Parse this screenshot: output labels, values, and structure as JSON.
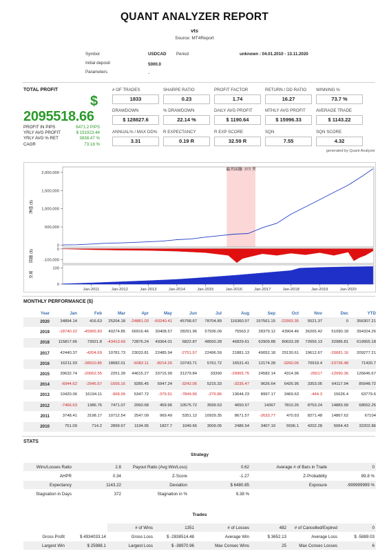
{
  "header": {
    "title": "QUANT ANALYZER REPORT",
    "strategy": "vts",
    "source": "Source: MT4Report"
  },
  "info": {
    "symbol_label": "Symbol",
    "symbol": "USDCAD",
    "period_label": "Period",
    "period": "unknown : 04.01.2010 - 13.11.2020",
    "deposit_label": "Initial deposit",
    "deposit": "5000.0",
    "params_label": "Parameters",
    "params": "-"
  },
  "total_profit": {
    "label": "TOTAL PROFIT",
    "currency": "$",
    "value": "2095518.66",
    "rows": [
      {
        "label": "PROFIT IN PIPS",
        "value": "6471.2 PIPS"
      },
      {
        "label": "YRLY AVG PROFIT",
        "value": "$ 191923.44"
      },
      {
        "label": "YRLY AVG % RET",
        "value": "3838.47 %"
      },
      {
        "label": "CAGR",
        "value": "73.18 %"
      }
    ]
  },
  "metrics": [
    [
      {
        "label": "# OF TRADES",
        "value": "1833"
      },
      {
        "label": "SHARPE RATIO",
        "value": "0.23"
      },
      {
        "label": "PROFIT FACTOR",
        "value": "1.74"
      },
      {
        "label": "RETURN / DD RATIO",
        "value": "16.27"
      },
      {
        "label": "WINNING %",
        "value": "73.7 %"
      }
    ],
    [
      {
        "label": "DRAWDOWN",
        "value": "$ 128827.6"
      },
      {
        "label": "% DRAWDOWN",
        "value": "22.14 %"
      },
      {
        "label": "DAILY AVG PROFIT",
        "value": "$ 1190.64"
      },
      {
        "label": "MTHLY AVG PROFIT",
        "value": "$ 15996.33"
      },
      {
        "label": "AVERAGE TRADE",
        "value": "$ 1143.22"
      }
    ],
    [
      {
        "label": "ANNUAL% / MAX DD%",
        "value": "3.31"
      },
      {
        "label": "R EXPECTANCY",
        "value": "0.19 R"
      },
      {
        "label": "R EXP SCORE",
        "value": "32.59 R"
      },
      {
        "label": "SQN",
        "value": "7.55"
      },
      {
        "label": "SQN SCORE",
        "value": "4.32"
      }
    ]
  ],
  "generated_by": "generated by Quant Analyzer",
  "chart_data": {
    "type": "line",
    "equity": {
      "ylabel": "净值 ($)",
      "yticks": [
        "2,000,000",
        "1,500,000",
        "1,000,000",
        "500,000",
        "0"
      ],
      "ytick_values": [
        2000000,
        1500000,
        1000000,
        500000,
        0
      ],
      "ylim": [
        -50000,
        2150000
      ],
      "highlight_label": "最大回撤: 372 天",
      "x": [
        2010.0,
        2010.5,
        2011.0,
        2011.5,
        2012.0,
        2012.5,
        2013.0,
        2013.5,
        2014.0,
        2014.5,
        2015.0,
        2015.5,
        2016.0,
        2016.5,
        2017.0,
        2017.5,
        2018.0,
        2018.5,
        2019.0,
        2019.5,
        2020.0,
        2020.5,
        2020.87
      ],
      "y": [
        5000,
        10000,
        30000,
        50000,
        60000,
        75000,
        90000,
        110000,
        150000,
        170000,
        220000,
        260000,
        300000,
        320000,
        480000,
        600000,
        850000,
        1050000,
        1250000,
        1450000,
        1650000,
        1900000,
        2100000
      ]
    },
    "drawdown": {
      "ylabel": "回撤 ($)",
      "yticks": [
        "0",
        "-100,000"
      ],
      "ytick_values": [
        0,
        -100000
      ],
      "ylim": [
        -135000,
        5000
      ],
      "x": [
        2010.0,
        2011.0,
        2012.0,
        2013.0,
        2014.0,
        2015.0,
        2015.8,
        2016.1,
        2016.3,
        2016.6,
        2017.0,
        2017.5,
        2018.0,
        2018.5,
        2019.0,
        2019.5,
        2020.0,
        2020.2,
        2020.4,
        2020.6,
        2020.87
      ],
      "y": [
        0,
        -8000,
        -12000,
        -15000,
        -22000,
        -35000,
        -60000,
        -128000,
        -90000,
        -70000,
        -45000,
        -60000,
        -40000,
        -55000,
        -35000,
        -60000,
        -30000,
        -110000,
        -80000,
        -60000,
        -20000
      ]
    },
    "trades": {
      "ylabel": "交易",
      "yticks": [
        "100",
        "0"
      ],
      "ytick_values": [
        100,
        0
      ],
      "ylim": [
        0,
        120
      ]
    },
    "xticks": [
      "Jan-2011",
      "Jan-2012",
      "Jan-2013",
      "Jan-2014",
      "Jan-2015",
      "Jan-2016",
      "Jan-2017",
      "Jan-2018",
      "Jan-2019",
      "Jan-2020"
    ],
    "xtick_values": [
      2011,
      2012,
      2013,
      2014,
      2015,
      2016,
      2017,
      2018,
      2019,
      2020
    ],
    "xlim": [
      2010.0,
      2020.9
    ],
    "highlight_range": [
      2015.75,
      2016.75
    ],
    "colors": {
      "equity": "#1f3ec7",
      "drawdown": "#e01010",
      "trades": "#1f30c8",
      "highlight": "#fbd7d7"
    }
  },
  "monthly": {
    "title": "MONTHLY PERFORMANCE ($)",
    "headers": [
      "Year",
      "Jan",
      "Feb",
      "Mar",
      "Apr",
      "May",
      "Jun",
      "Jul",
      "Aug",
      "Sep",
      "Oct",
      "Nov",
      "Dec",
      "YTD"
    ],
    "rows": [
      [
        "2020",
        "34894.14",
        "416.63",
        "25204.18",
        "-24881.03",
        "-60240.41",
        "45758.67",
        "78704.89",
        "116360.97",
        "157561.15",
        "-22993.35",
        "5521.37",
        "0",
        "356307.21"
      ],
      [
        "2019",
        "-18740.22",
        "-45965.83",
        "40274.85",
        "66916.46",
        "30408.57",
        "28291.96",
        "57936.09",
        "75563.2",
        "28379.12",
        "43904.46",
        "36265.42",
        "51090.18",
        "394324.26"
      ],
      [
        "2018",
        "115817.96",
        "73921.8",
        "-43413.69",
        "72876.24",
        "49364.01",
        "6822.87",
        "48550.28",
        "46829.61",
        "62909.88",
        "80633.28",
        "72656.13",
        "32986.81",
        "619955.18"
      ],
      [
        "2017",
        "42440.37",
        "-4204.69",
        "10781.73",
        "23033.81",
        "22485.94",
        "-2751.97",
        "22496.59",
        "21881.13",
        "49052.18",
        "25130.61",
        "19612.67",
        "-20681.16",
        "209277.21"
      ],
      [
        "2016",
        "16211.93",
        "-38310.85",
        "18682.01",
        "-6082.11",
        "-8214.26",
        "10743.71",
        "5761.72",
        "16531.41",
        "12174.28",
        "-3260.06",
        "70919.4",
        "-23736.48",
        "71420.7"
      ],
      [
        "2015",
        "39632.74",
        "-20062.55",
        "2251.39",
        "44615.27",
        "33715.99",
        "31279.84",
        "33390",
        "-29965.75",
        "24582.14",
        "4314.96",
        "-25017",
        "-12090.36",
        "126646.67"
      ],
      [
        "2014",
        "-6944.62",
        "-2945.57",
        "-1656.16",
        "9285.45",
        "5947.24",
        "-3242.06",
        "5215.33",
        "-3235.47",
        "9626.64",
        "6426.95",
        "3353.05",
        "64117.94",
        "85948.72"
      ],
      [
        "2013",
        "10420.06",
        "16194.11",
        "-968.99",
        "5347.72",
        "-379.61",
        "-7849.96",
        "-276.86",
        "13644.23",
        "8997.17",
        "3469.63",
        "-444.3",
        "15626.4",
        "63779.6"
      ],
      [
        "2012",
        "-7466.63",
        "1386.76",
        "7471.07",
        "2060.68",
        "459.96",
        "10575.72",
        "3599.63",
        "4650.57",
        "14367",
        "7810.26",
        "8753.24",
        "14883.99",
        "68552.25"
      ],
      [
        "2011",
        "3748.41",
        "3198.17",
        "10712.54",
        "2547.09",
        "969.49",
        "5351.12",
        "10929.35",
        "8671.57",
        "-2633.77",
        "470.93",
        "8271.48",
        "14867.62",
        "67104"
      ],
      [
        "2010",
        "751.09",
        "714.2",
        "2899.67",
        "1194.95",
        "1827.7",
        "1049.66",
        "3009.05",
        "2486.54",
        "3407.19",
        "5596.1",
        "4202.28",
        "5064.43",
        "32202.86"
      ]
    ]
  },
  "stats": {
    "title": "STATS",
    "strategy_title": "Strategy",
    "strategy_rows": [
      [
        "Wins/Losses Ratio",
        "2.8",
        "Payout Ratio (Avg Win/Loss)",
        "0.62",
        "Average # of Bars in Trade",
        "0"
      ],
      [
        "AHPR",
        "0.34",
        "Z-Score",
        "-1.27",
        "Z-Probability",
        "89.8 %"
      ],
      [
        "Expectancy",
        "1143.22",
        "Deviation",
        "$ 6480.85",
        "Exposure",
        "-999999999 %"
      ],
      [
        "Stagnation in Days",
        "372",
        "Stagnation in %",
        "9.38 %",
        "",
        ""
      ]
    ],
    "trades_title": "Trades",
    "trades_rows": [
      [
        "",
        "",
        "# of Wins",
        "1351",
        "# of Losses",
        "482",
        "# of Cancelled/Expired",
        "0"
      ],
      [
        "Gross Profit",
        "$ 4934033.14",
        "Gross Loss",
        "$ -2838514.48",
        "Average Win",
        "$ 3652.13",
        "Average Loss",
        "$ -5889.03"
      ],
      [
        "Largest Win",
        "$ 25988.1",
        "Largest Loss",
        "$ -38970.96",
        "Max Consec Wins",
        "25",
        "Max Consec Losses",
        "6"
      ]
    ]
  }
}
